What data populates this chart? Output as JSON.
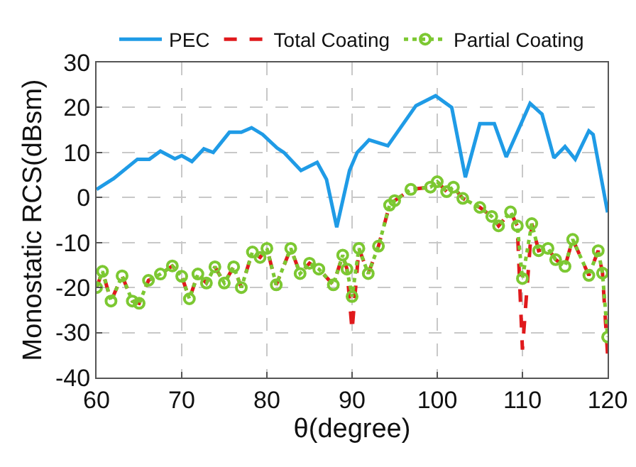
{
  "chart_data": {
    "type": "line",
    "xlabel": "θ(degree)",
    "ylabel": "Monostatic RCS(dBsm)",
    "xlim": [
      60,
      120
    ],
    "xticks": [
      60,
      70,
      80,
      90,
      100,
      110,
      120
    ],
    "ylim": [
      -40,
      30
    ],
    "yticks": [
      -40,
      -30,
      -20,
      -10,
      0,
      10,
      20,
      30
    ],
    "grid": true,
    "legend": "top",
    "series": [
      {
        "name": "PEC",
        "color": "#1f9be6",
        "line_style": "solid",
        "marker": "none",
        "x": [
          60,
          62,
          64.8,
          66.2,
          67.5,
          69.2,
          70,
          71.2,
          72.6,
          73.7,
          75.6,
          77,
          78.2,
          79.5,
          81.2,
          82,
          84,
          85.9,
          87,
          88.2,
          89.7,
          90.6,
          92,
          94.2,
          97.5,
          99.8,
          101.7,
          103.3,
          105,
          106.7,
          108.1,
          110.9,
          112.3,
          113.7,
          115,
          116.2,
          117.8,
          118.3,
          120
        ],
        "values": [
          1.8,
          4.2,
          8.5,
          8.5,
          10.3,
          8.6,
          9.3,
          8,
          10.8,
          10,
          14.5,
          14.5,
          15.5,
          14,
          11,
          10,
          6,
          7.8,
          4,
          -6.6,
          6,
          10,
          12.8,
          11.5,
          20.4,
          22.6,
          20,
          4.5,
          16.4,
          16.4,
          9,
          20.9,
          18.5,
          8.8,
          11.3,
          8.5,
          14.8,
          14,
          -3.3
        ]
      },
      {
        "name": "Total Coating",
        "color": "#e0191c",
        "line_style": "dashed",
        "marker": "none",
        "x": [
          60,
          60.7,
          61.7,
          63,
          64.2,
          65,
          66.1,
          67.5,
          68.9,
          70,
          70.9,
          71.9,
          72.9,
          73.9,
          75,
          76.1,
          77,
          78.3,
          79.2,
          80,
          81.1,
          82.8,
          83.9,
          85,
          86.1,
          87.8,
          88.9,
          89.4,
          90,
          90.8,
          91.9,
          93.1,
          94.4,
          95,
          96.9,
          99.2,
          100,
          101.1,
          101.9,
          103,
          105,
          106.4,
          107.2,
          108.6,
          109.4,
          110,
          111.1,
          111.9,
          113,
          113.9,
          115,
          115.9,
          117.8,
          118.9,
          119.4,
          120
        ],
        "values": [
          -20,
          -16.4,
          -23,
          -17.4,
          -23,
          -23.5,
          -18.4,
          -17,
          -15.2,
          -17.5,
          -22.5,
          -17,
          -19,
          -15.4,
          -19,
          -15.4,
          -20,
          -12.1,
          -13.3,
          -11.3,
          -19.4,
          -11.3,
          -16.9,
          -14.6,
          -15.9,
          -19.4,
          -12.8,
          -15.9,
          -29.5,
          -11.3,
          -16.9,
          -10.8,
          -1.7,
          -0.7,
          1.8,
          2.3,
          3.5,
          1.3,
          2.3,
          -0.2,
          -2.2,
          -4.2,
          -6.3,
          -3.2,
          -6.3,
          -33.8,
          -5.8,
          -11.8,
          -11.3,
          -13.8,
          -15.3,
          -9.3,
          -17.3,
          -11.8,
          -16.8,
          -35
        ]
      },
      {
        "name": "Partial Coating",
        "color": "#7cc832",
        "line_style": "dotted",
        "marker": "circle",
        "x": [
          60,
          60.7,
          61.7,
          63,
          64.2,
          65,
          66.1,
          67.5,
          68.9,
          70,
          70.9,
          71.9,
          72.9,
          73.9,
          75,
          76.1,
          77,
          78.3,
          79.2,
          80,
          81.1,
          82.8,
          83.9,
          85,
          86.1,
          87.8,
          88.9,
          89.4,
          90,
          90.8,
          91.9,
          93.1,
          94.4,
          95,
          96.9,
          99.2,
          100,
          101.1,
          101.9,
          103,
          105,
          106.4,
          107.2,
          108.6,
          109.4,
          110,
          111.1,
          111.9,
          113,
          113.9,
          115,
          115.9,
          117.8,
          118.9,
          119.4,
          120
        ],
        "values": [
          -20,
          -16.4,
          -23,
          -17.4,
          -23,
          -23.5,
          -18.4,
          -17,
          -15.2,
          -17.5,
          -22.5,
          -17,
          -19,
          -15.4,
          -19,
          -15.4,
          -20,
          -12.1,
          -13.3,
          -11.3,
          -19.4,
          -11.3,
          -16.9,
          -14.6,
          -15.9,
          -19.4,
          -12.8,
          -15.9,
          -22,
          -11.3,
          -16.9,
          -10.8,
          -1.7,
          -0.7,
          1.8,
          2.3,
          3.5,
          1.3,
          2.3,
          -0.2,
          -2.2,
          -4.2,
          -6.3,
          -3.2,
          -6.3,
          -18,
          -5.8,
          -11.8,
          -11.3,
          -13.8,
          -15.3,
          -9.3,
          -17.3,
          -11.8,
          -16.8,
          -31
        ]
      }
    ]
  }
}
